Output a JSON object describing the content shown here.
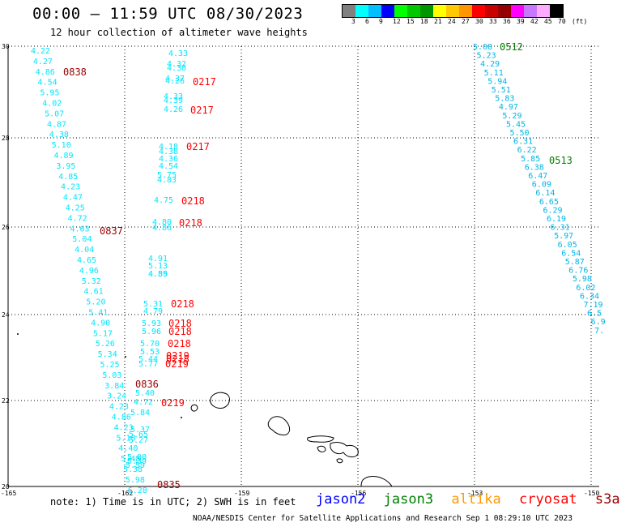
{
  "header": {
    "title": "00:00 – 11:59 UTC 08/30/2023",
    "subtitle": "12 hour collection of altimeter wave heights"
  },
  "colorbar": {
    "colors": [
      "#808080",
      "#00ffff",
      "#00bfff",
      "#0000ff",
      "#00ff00",
      "#00c800",
      "#009600",
      "#ffff00",
      "#ffc800",
      "#ff9600",
      "#ff0000",
      "#c80000",
      "#960000",
      "#ff00ff",
      "#c878ff",
      "#ffaaff",
      "#000000"
    ],
    "labels": [
      "3",
      "6",
      "9",
      "12",
      "15",
      "18",
      "21",
      "24",
      "27",
      "30",
      "33",
      "36",
      "39",
      "42",
      "45",
      "70",
      "(ft)"
    ]
  },
  "axes": {
    "lat_labels": [
      "30",
      "28",
      "26",
      "24",
      "22",
      "20"
    ],
    "lon_labels": [
      "-165",
      "-162",
      "-159",
      "-156",
      "-153",
      "-150"
    ]
  },
  "colors": {
    "cyan_text": "#00e6ff",
    "mid_text": "#00b4e6",
    "sat_jason2": "#0000ff",
    "sat_jason3": "#008000",
    "sat_altika": "#ff9900",
    "sat_cryosat": "#ff0000",
    "time_red": "#ff0000",
    "time_darkred": "#990000",
    "time_green": "#008000"
  },
  "tracks": {
    "west": [
      "4.22",
      "4.27",
      "4.86",
      "4.54",
      "5.95",
      "4.02",
      "5.07",
      "4.87",
      "4.38",
      "5.10",
      "4.89",
      "3.95",
      "4.85",
      "4.23",
      "4.47",
      "4.25",
      "4.72",
      "4.63",
      "5.04",
      "4.04",
      "4.65",
      "4.96",
      "5.32",
      "4.61",
      "5.20",
      "5.41",
      "4.90",
      "5.17",
      "5.26",
      "5.34",
      "5.25",
      "5.03",
      "3.84",
      "3.24",
      "4.23",
      "4.86",
      "4.23",
      "5.18",
      "4.40",
      "5.48",
      "5.38",
      "5.98",
      "6.28"
    ],
    "middle": [
      "4.33",
      "4.32",
      "4.38",
      "4.37",
      "4.26",
      "4.33",
      "4.39",
      "4.26",
      "4.18",
      "4.38",
      "4.36",
      "4.54",
      "5.75",
      "4.83",
      "4.75",
      "4.80",
      "4.86",
      "4.91",
      "5.13",
      "4.55",
      "4.89",
      "5.31",
      "4.79",
      "5.93",
      "5.96",
      "5.70",
      "5.53",
      "5.44",
      "5.77",
      "5.40",
      "4.72",
      "5.84",
      "5.37",
      "5.65",
      "5.27",
      "5.00",
      "5.39",
      "5.59"
    ],
    "east": [
      "5.08",
      "5.23",
      "4.29",
      "5.11",
      "5.94",
      "5.51",
      "5.83",
      "4.97",
      "5.29",
      "5.45",
      "5.50",
      "6.31",
      "6.22",
      "5.85",
      "6.38",
      "6.47",
      "6.09",
      "6.14",
      "6.65",
      "6.29",
      "6.19",
      "6.31",
      "5.97",
      "6.05",
      "6.54",
      "5.87",
      "6.76",
      "5.98",
      "6.02",
      "6.34",
      "7.19",
      "6.5",
      "6.9",
      "7."
    ]
  },
  "time_labels": [
    "0838",
    "0217",
    "0217",
    "0217",
    "0218",
    "0218",
    "0837",
    "0218",
    "0218",
    "0218",
    "0218",
    "0219",
    "0218",
    "0219",
    "0836",
    "0219",
    "0835",
    "0512",
    "0513"
  ],
  "note": "note: 1) Time is in UTC; 2) SWH is in feet",
  "legend": {
    "jason2": "jason2",
    "jason3": "jason3",
    "altika": "altika",
    "cryosat": "cryosat",
    "s3a": "s3a"
  },
  "footer": "NOAA/NESDIS Center for Satellite Applications and Research   Sep  1 08:29:10 UTC 2023"
}
